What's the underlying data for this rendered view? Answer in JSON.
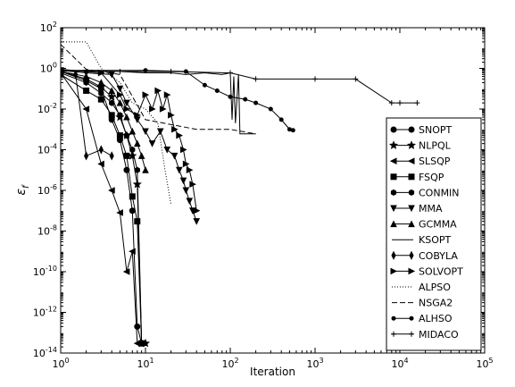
{
  "chart_data": {
    "type": "line",
    "title": "",
    "xlabel": "Iteration",
    "ylabel": "ε",
    "ylabel_sub": "f",
    "xscale": "log",
    "yscale": "log",
    "xlim": [
      1,
      100000
    ],
    "ylim": [
      1e-14,
      100
    ],
    "x_ticks": [
      {
        "v": 1,
        "b": "10",
        "e": "0"
      },
      {
        "v": 10,
        "b": "10",
        "e": "1"
      },
      {
        "v": 100,
        "b": "10",
        "e": "2"
      },
      {
        "v": 1000,
        "b": "10",
        "e": "3"
      },
      {
        "v": 10000,
        "b": "10",
        "e": "4"
      },
      {
        "v": 100000,
        "b": "10",
        "e": "5"
      }
    ],
    "y_ticks": [
      {
        "v": 100,
        "b": "10",
        "e": "2"
      },
      {
        "v": 1,
        "b": "10",
        "e": "0"
      },
      {
        "v": 0.01,
        "b": "10",
        "e": "-2"
      },
      {
        "v": 0.0001,
        "b": "10",
        "e": "-4"
      },
      {
        "v": 1e-06,
        "b": "10",
        "e": "-6"
      },
      {
        "v": 1e-08,
        "b": "10",
        "e": "-8"
      },
      {
        "v": 1e-10,
        "b": "10",
        "e": "-10"
      },
      {
        "v": 1e-12,
        "b": "10",
        "e": "-12"
      },
      {
        "v": 1e-14,
        "b": "10",
        "e": "-14"
      }
    ],
    "grid": false,
    "legend_position": "right",
    "series": [
      {
        "name": "SNOPT",
        "marker": "circle",
        "dash": "",
        "width": 1,
        "points": [
          [
            1,
            0.7
          ],
          [
            2,
            0.25
          ],
          [
            3,
            0.1
          ],
          [
            4,
            0.003
          ],
          [
            5,
            0.0003
          ],
          [
            6,
            1e-05
          ],
          [
            7,
            1e-07
          ],
          [
            8,
            2e-13
          ],
          [
            9,
            3e-14
          ]
        ]
      },
      {
        "name": "NLPQL",
        "marker": "star",
        "dash": "",
        "width": 1,
        "points": [
          [
            1,
            0.7
          ],
          [
            2,
            0.3
          ],
          [
            3,
            0.12
          ],
          [
            4,
            0.04
          ],
          [
            5,
            0.004
          ],
          [
            6,
            0.0005
          ],
          [
            7,
            5e-05
          ],
          [
            8,
            2e-06
          ],
          [
            9,
            3e-14
          ],
          [
            10,
            3e-14
          ]
        ]
      },
      {
        "name": "SLSQP",
        "marker": "triangle-left",
        "dash": "",
        "width": 1,
        "points": [
          [
            1,
            0.6
          ],
          [
            2,
            0.01
          ],
          [
            3,
            2e-05
          ],
          [
            4,
            1e-06
          ],
          [
            5,
            8e-08
          ],
          [
            6,
            1e-10
          ],
          [
            7,
            1e-09
          ],
          [
            8,
            3e-14
          ]
        ]
      },
      {
        "name": "FSQP",
        "marker": "square",
        "dash": "",
        "width": 1,
        "points": [
          [
            1,
            0.5
          ],
          [
            2,
            0.08
          ],
          [
            3,
            0.03
          ],
          [
            4,
            0.005
          ],
          [
            5,
            0.0005
          ],
          [
            6,
            5e-05
          ],
          [
            7,
            5e-07
          ],
          [
            8,
            3e-08
          ],
          [
            9,
            3e-14
          ]
        ]
      },
      {
        "name": "CONMIN",
        "marker": "hexagon",
        "dash": "",
        "width": 1,
        "points": [
          [
            1,
            0.6
          ],
          [
            2,
            0.2
          ],
          [
            3,
            0.06
          ],
          [
            4,
            0.02
          ],
          [
            5,
            0.005
          ],
          [
            6,
            0.0005
          ],
          [
            7,
            0.0001
          ],
          [
            8,
            1e-05
          ],
          [
            9,
            3e-14
          ]
        ]
      },
      {
        "name": "MMA",
        "marker": "triangle-down",
        "dash": "",
        "width": 1,
        "points": [
          [
            1,
            0.8
          ],
          [
            2,
            0.6
          ],
          [
            4,
            0.5
          ],
          [
            5,
            0.1
          ],
          [
            6,
            0.02
          ],
          [
            8,
            0.003
          ],
          [
            10,
            0.0008
          ],
          [
            12,
            0.0002
          ],
          [
            15,
            0.0008
          ],
          [
            18,
            0.0001
          ],
          [
            22,
            5e-05
          ],
          [
            25,
            1e-05
          ],
          [
            28,
            3e-06
          ],
          [
            30,
            1e-06
          ],
          [
            33,
            3e-07
          ],
          [
            36,
            1e-07
          ],
          [
            40,
            3e-08
          ]
        ]
      },
      {
        "name": "GCMMA",
        "marker": "triangle-up",
        "dash": "",
        "width": 1,
        "points": [
          [
            1,
            0.7
          ],
          [
            2,
            0.4
          ],
          [
            3,
            0.2
          ],
          [
            4,
            0.08
          ],
          [
            5,
            0.02
          ],
          [
            6,
            0.004
          ],
          [
            7,
            0.0008
          ],
          [
            8,
            0.0002
          ],
          [
            9,
            5e-05
          ],
          [
            10,
            1e-05
          ]
        ]
      },
      {
        "name": "KSOPT",
        "marker": "none",
        "dash": "",
        "width": 1,
        "points": [
          [
            1,
            0.75
          ],
          [
            5,
            0.7
          ],
          [
            10,
            0.6
          ],
          [
            20,
            0.6
          ],
          [
            30,
            0.5
          ],
          [
            50,
            0.6
          ],
          [
            80,
            0.5
          ],
          [
            100,
            0.6
          ],
          [
            105,
            0.003
          ],
          [
            110,
            0.4
          ],
          [
            115,
            0.002
          ],
          [
            125,
            0.5
          ],
          [
            130,
            0.0006
          ],
          [
            200,
            0.0006
          ]
        ]
      },
      {
        "name": "COBYLA",
        "marker": "diamond",
        "dash": "",
        "width": 1,
        "points": [
          [
            1,
            0.7
          ],
          [
            1.5,
            0.5
          ],
          [
            2,
            5e-05
          ],
          [
            3,
            0.0001
          ],
          [
            4,
            5e-05
          ]
        ]
      },
      {
        "name": "SOLVOPT",
        "marker": "triangle-right",
        "dash": "",
        "width": 1,
        "points": [
          [
            1,
            0.9
          ],
          [
            3,
            0.6
          ],
          [
            5,
            0.05
          ],
          [
            6,
            0.01
          ],
          [
            8,
            0.005
          ],
          [
            10,
            0.05
          ],
          [
            12,
            0.01
          ],
          [
            14,
            0.08
          ],
          [
            16,
            0.01
          ],
          [
            18,
            0.05
          ],
          [
            20,
            0.005
          ],
          [
            22,
            0.001
          ],
          [
            25,
            0.0005
          ],
          [
            28,
            0.0001
          ],
          [
            30,
            2e-05
          ],
          [
            33,
            1e-05
          ],
          [
            36,
            2e-06
          ],
          [
            40,
            1e-07
          ]
        ]
      },
      {
        "name": "ALPSO",
        "marker": "none",
        "dash": "dotted",
        "width": 1,
        "points": [
          [
            1,
            20
          ],
          [
            2,
            20
          ],
          [
            3,
            1
          ],
          [
            5,
            0.2
          ],
          [
            7,
            0.02
          ],
          [
            10,
            0.01
          ],
          [
            14,
            0.002
          ],
          [
            17,
            1e-05
          ],
          [
            20,
            2e-07
          ]
        ]
      },
      {
        "name": "NSGA2",
        "marker": "none",
        "dash": "dashed",
        "width": 1,
        "points": [
          [
            1,
            15
          ],
          [
            2,
            0.9
          ],
          [
            5,
            0.5
          ],
          [
            10,
            0.003
          ],
          [
            40,
            0.001
          ],
          [
            100,
            0.001
          ],
          [
            200,
            0.0006
          ]
        ]
      },
      {
        "name": "ALHSO",
        "marker": "dot",
        "dash": "",
        "width": 1,
        "points": [
          [
            1,
            0.8
          ],
          [
            10,
            0.8
          ],
          [
            30,
            0.7
          ],
          [
            50,
            0.15
          ],
          [
            70,
            0.08
          ],
          [
            100,
            0.04
          ],
          [
            150,
            0.03
          ],
          [
            200,
            0.02
          ],
          [
            300,
            0.01
          ],
          [
            400,
            0.003
          ],
          [
            500,
            0.001
          ],
          [
            550,
            0.0009
          ]
        ]
      },
      {
        "name": "MIDACO",
        "marker": "plus",
        "dash": "",
        "width": 1,
        "points": [
          [
            1,
            0.8
          ],
          [
            5,
            0.7
          ],
          [
            20,
            0.7
          ],
          [
            100,
            0.6
          ],
          [
            200,
            0.3
          ],
          [
            1000,
            0.3
          ],
          [
            3000,
            0.3
          ],
          [
            8000,
            0.02
          ],
          [
            10000,
            0.02
          ],
          [
            16000,
            0.02
          ]
        ]
      }
    ]
  }
}
